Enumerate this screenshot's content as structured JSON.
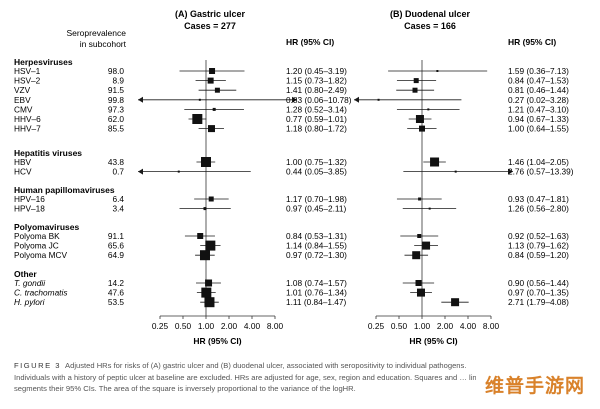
{
  "chart_data": [
    {
      "type": "forest",
      "title": "(A) Gastric ulcer",
      "subtitle": "Cases = 277",
      "xlabel": "HR (95% CI)",
      "ci_header": "HR (95% CI)",
      "x_scale": "log2",
      "xlim": [
        0.25,
        8.0
      ],
      "ticks": [
        "0.25",
        "0.50",
        "1.00",
        "2.00",
        "4.00",
        "8.00"
      ],
      "tick_values": [
        0.25,
        0.5,
        1,
        2,
        4,
        8
      ],
      "reference_line": 1,
      "rows": [
        {
          "hr": 1.2,
          "lo": 0.45,
          "hi": 3.19,
          "label": "1.20 (0.45–3.19)",
          "w": 6
        },
        {
          "hr": 1.15,
          "lo": 0.73,
          "hi": 1.82,
          "label": "1.15 (0.73–1.82)",
          "w": 6
        },
        {
          "hr": 1.41,
          "lo": 0.8,
          "hi": 2.49,
          "label": "1.41 (0.80–2.49)",
          "w": 5
        },
        {
          "hr": 0.83,
          "lo": 0.06,
          "hi": 10.78,
          "label": "0.83 (0.06–10.78)",
          "w": 2
        },
        {
          "hr": 1.28,
          "lo": 0.52,
          "hi": 3.14,
          "label": "1.28 (0.52–3.14)",
          "w": 3
        },
        {
          "hr": 0.77,
          "lo": 0.59,
          "hi": 1.01,
          "label": "0.77 (0.59–1.01)",
          "w": 10
        },
        {
          "hr": 1.18,
          "lo": 0.8,
          "hi": 1.72,
          "label": "1.18 (0.80–1.72)",
          "w": 7
        },
        {
          "hr": 1.0,
          "lo": 0.75,
          "hi": 1.32,
          "label": "1.00 (0.75–1.32)",
          "w": 10
        },
        {
          "hr": 0.44,
          "lo": 0.05,
          "hi": 3.85,
          "label": "0.44 (0.05–3.85)",
          "w": 2
        },
        {
          "hr": 1.17,
          "lo": 0.7,
          "hi": 1.98,
          "label": "1.17 (0.70–1.98)",
          "w": 5
        },
        {
          "hr": 0.97,
          "lo": 0.45,
          "hi": 2.11,
          "label": "0.97 (0.45–2.11)",
          "w": 3
        },
        {
          "hr": 0.84,
          "lo": 0.53,
          "hi": 1.31,
          "label": "0.84 (0.53–1.31)",
          "w": 6
        },
        {
          "hr": 1.14,
          "lo": 0.84,
          "hi": 1.55,
          "label": "1.14 (0.84–1.55)",
          "w": 10
        },
        {
          "hr": 0.97,
          "lo": 0.72,
          "hi": 1.3,
          "label": "0.97 (0.72–1.30)",
          "w": 10
        },
        {
          "hr": 1.08,
          "lo": 0.74,
          "hi": 1.57,
          "label": "1.08 (0.74–1.57)",
          "w": 7
        },
        {
          "hr": 1.01,
          "lo": 0.76,
          "hi": 1.34,
          "label": "1.01 (0.76–1.34)",
          "w": 10
        },
        {
          "hr": 1.11,
          "lo": 0.84,
          "hi": 1.47,
          "label": "1.11 (0.84–1.47)",
          "w": 10
        }
      ]
    },
    {
      "type": "forest",
      "title": "(B) Duodenal ulcer",
      "subtitle": "Cases = 166",
      "xlabel": "HR (95% CI)",
      "ci_header": "HR (95% CI)",
      "x_scale": "log2",
      "xlim": [
        0.25,
        8.0
      ],
      "ticks": [
        "0.25",
        "0.50",
        "1.00",
        "2.00",
        "4.00",
        "8.00"
      ],
      "tick_values": [
        0.25,
        0.5,
        1,
        2,
        4,
        8
      ],
      "reference_line": 1,
      "rows": [
        {
          "hr": 1.59,
          "lo": 0.36,
          "hi": 7.13,
          "label": "1.59 (0.36–7.13)",
          "w": 2
        },
        {
          "hr": 0.84,
          "lo": 0.47,
          "hi": 1.53,
          "label": "0.84 (0.47–1.53)",
          "w": 5
        },
        {
          "hr": 0.81,
          "lo": 0.46,
          "hi": 1.44,
          "label": "0.81 (0.46–1.44)",
          "w": 5
        },
        {
          "hr": 0.27,
          "lo": 0.02,
          "hi": 3.28,
          "label": "0.27 (0.02–3.28)",
          "w": 2
        },
        {
          "hr": 1.21,
          "lo": 0.47,
          "hi": 3.1,
          "label": "1.21 (0.47–3.10)",
          "w": 2
        },
        {
          "hr": 0.94,
          "lo": 0.67,
          "hi": 1.33,
          "label": "0.94 (0.67–1.33)",
          "w": 8
        },
        {
          "hr": 1.0,
          "lo": 0.64,
          "hi": 1.55,
          "label": "1.00 (0.64–1.55)",
          "w": 6
        },
        {
          "hr": 1.46,
          "lo": 1.04,
          "hi": 2.05,
          "label": "1.46 (1.04–2.05)",
          "w": 9
        },
        {
          "hr": 2.76,
          "lo": 0.57,
          "hi": 13.39,
          "label": "2.76 (0.57–13.39)",
          "w": 2
        },
        {
          "hr": 0.93,
          "lo": 0.47,
          "hi": 1.81,
          "label": "0.93 (0.47–1.81)",
          "w": 3
        },
        {
          "hr": 1.26,
          "lo": 0.56,
          "hi": 2.8,
          "label": "1.26 (0.56–2.80)",
          "w": 2
        },
        {
          "hr": 0.92,
          "lo": 0.52,
          "hi": 1.63,
          "label": "0.92 (0.52–1.63)",
          "w": 4
        },
        {
          "hr": 1.13,
          "lo": 0.79,
          "hi": 1.62,
          "label": "1.13 (0.79–1.62)",
          "w": 8
        },
        {
          "hr": 0.84,
          "lo": 0.59,
          "hi": 1.2,
          "label": "0.84 (0.59–1.20)",
          "w": 8
        },
        {
          "hr": 0.9,
          "lo": 0.56,
          "hi": 1.44,
          "label": "0.90 (0.56–1.44)",
          "w": 6
        },
        {
          "hr": 0.97,
          "lo": 0.7,
          "hi": 1.35,
          "label": "0.97 (0.70–1.35)",
          "w": 8
        },
        {
          "hr": 2.71,
          "lo": 1.79,
          "hi": 4.08,
          "label": "2.71 (1.79–4.08)",
          "w": 8
        }
      ]
    }
  ],
  "table": {
    "seroprevalence_header": [
      "Seroprevalence",
      "in subcohort"
    ],
    "groups": [
      {
        "name": "Herpesviruses",
        "rows": [
          {
            "label": "HSV–1",
            "italic": false,
            "sero": "98.0"
          },
          {
            "label": "HSV–2",
            "italic": false,
            "sero": "8.9"
          },
          {
            "label": "VZV",
            "italic": false,
            "sero": "91.5"
          },
          {
            "label": "EBV",
            "italic": false,
            "sero": "99.8"
          },
          {
            "label": "CMV",
            "italic": false,
            "sero": "97.3"
          },
          {
            "label": "HHV–6",
            "italic": false,
            "sero": "62.0"
          },
          {
            "label": "HHV–7",
            "italic": false,
            "sero": "85.5"
          }
        ]
      },
      {
        "name": "Hepatitis viruses",
        "rows": [
          {
            "label": "HBV",
            "italic": false,
            "sero": "43.8"
          },
          {
            "label": "HCV",
            "italic": false,
            "sero": "0.7"
          }
        ]
      },
      {
        "name": "Human papillomaviruses",
        "rows": [
          {
            "label": "HPV–16",
            "italic": false,
            "sero": "6.4"
          },
          {
            "label": "HPV–18",
            "italic": false,
            "sero": "3.4"
          }
        ]
      },
      {
        "name": "Polyomaviruses",
        "rows": [
          {
            "label": "Polyoma BK",
            "italic": false,
            "sero": "91.1"
          },
          {
            "label": "Polyoma JC",
            "italic": false,
            "sero": "65.6"
          },
          {
            "label": "Polyoma MCV",
            "italic": false,
            "sero": "64.9"
          }
        ]
      },
      {
        "name": "Other",
        "rows": [
          {
            "label": "T. gondii",
            "italic": true,
            "sero": "14.2"
          },
          {
            "label": "C. trachomatis",
            "italic": true,
            "sero": "47.6"
          },
          {
            "label": "H. pylori",
            "italic": true,
            "sero": "53.5"
          }
        ]
      }
    ]
  },
  "caption": {
    "label": "FIGURE 3",
    "text": "Adjusted HRs for risks of (A) gastric ulcer and (B) duodenal ulcer, associated with seropositivity to individual pathogens. Individuals with a history of peptic ulcer at baseline are excluded. HRs are adjusted for age, sex, region and education. Squares and … line segments their 95% CIs. The area of the square is inversely proportional to the variance of the logHR."
  },
  "watermark": "维普手游网",
  "colors": {
    "ink": "#1a1a1a",
    "caption": "#555555",
    "watermark": "#d9822b"
  }
}
